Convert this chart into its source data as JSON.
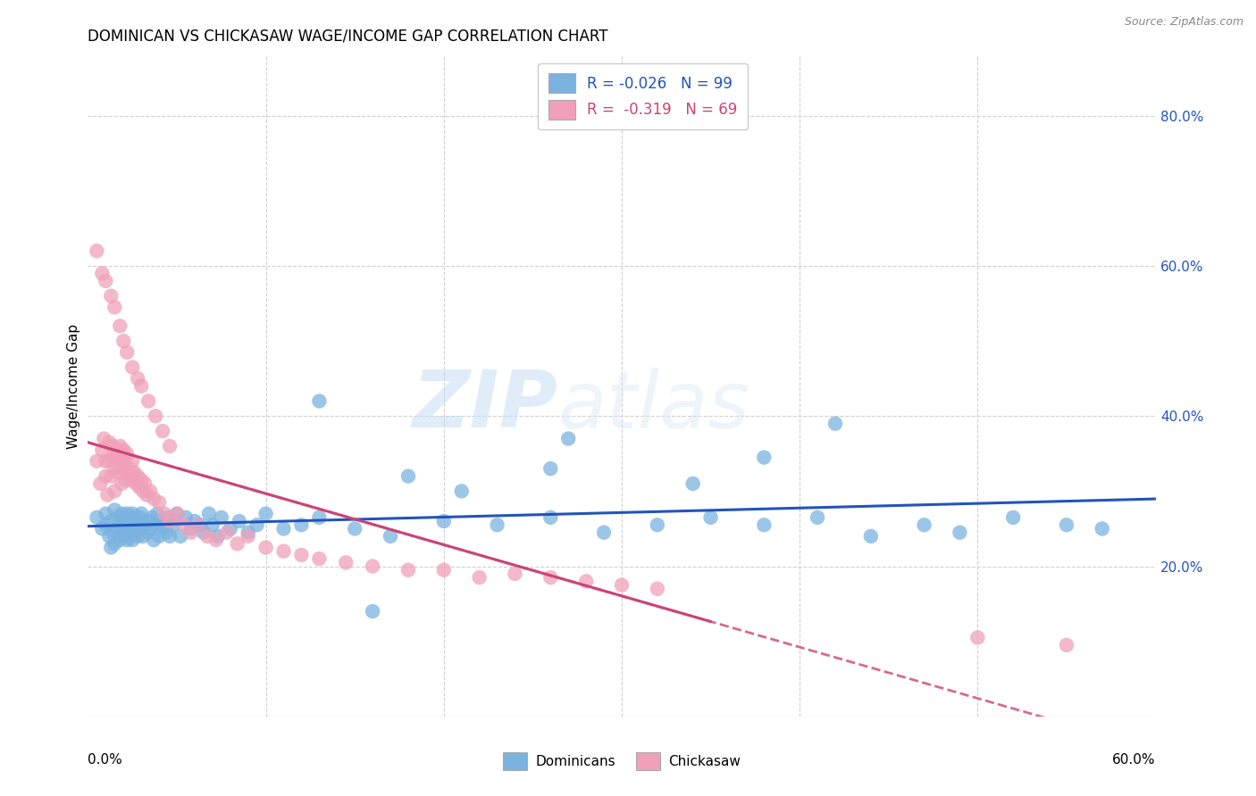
{
  "title": "DOMINICAN VS CHICKASAW WAGE/INCOME GAP CORRELATION CHART",
  "source": "Source: ZipAtlas.com",
  "ylabel": "Wage/Income Gap",
  "right_yticks": [
    "20.0%",
    "40.0%",
    "60.0%",
    "80.0%"
  ],
  "right_ytick_vals": [
    0.2,
    0.4,
    0.6,
    0.8
  ],
  "watermark_zip": "ZIP",
  "watermark_atlas": "atlas",
  "legend_line1": "R = -0.026   N = 99",
  "legend_line2": "R =  -0.319   N = 69",
  "blue_scatter_color": "#7ab3e0",
  "pink_scatter_color": "#f0a0b8",
  "blue_line_color": "#2255bb",
  "pink_line_color": "#cc4477",
  "grid_color": "#d0d0d0",
  "background_color": "#ffffff",
  "xmin": 0.0,
  "xmax": 0.6,
  "ymin": 0.0,
  "ymax": 0.88,
  "dominicans_x": [
    0.005,
    0.008,
    0.01,
    0.01,
    0.012,
    0.013,
    0.013,
    0.014,
    0.015,
    0.015,
    0.016,
    0.017,
    0.018,
    0.018,
    0.019,
    0.019,
    0.02,
    0.02,
    0.02,
    0.021,
    0.021,
    0.022,
    0.022,
    0.022,
    0.023,
    0.023,
    0.024,
    0.025,
    0.025,
    0.025,
    0.026,
    0.026,
    0.027,
    0.028,
    0.028,
    0.029,
    0.03,
    0.03,
    0.031,
    0.032,
    0.033,
    0.034,
    0.035,
    0.036,
    0.037,
    0.038,
    0.039,
    0.04,
    0.04,
    0.042,
    0.043,
    0.044,
    0.045,
    0.046,
    0.048,
    0.05,
    0.052,
    0.055,
    0.058,
    0.06,
    0.063,
    0.065,
    0.068,
    0.07,
    0.073,
    0.075,
    0.08,
    0.085,
    0.09,
    0.095,
    0.1,
    0.11,
    0.12,
    0.13,
    0.15,
    0.17,
    0.2,
    0.23,
    0.26,
    0.29,
    0.32,
    0.35,
    0.38,
    0.41,
    0.44,
    0.47,
    0.49,
    0.52,
    0.55,
    0.57,
    0.13,
    0.27,
    0.42,
    0.38,
    0.34,
    0.26,
    0.21,
    0.18,
    0.16
  ],
  "dominicans_y": [
    0.265,
    0.25,
    0.255,
    0.27,
    0.24,
    0.225,
    0.26,
    0.245,
    0.275,
    0.23,
    0.25,
    0.265,
    0.235,
    0.255,
    0.245,
    0.27,
    0.26,
    0.24,
    0.255,
    0.245,
    0.265,
    0.235,
    0.255,
    0.27,
    0.24,
    0.26,
    0.25,
    0.255,
    0.27,
    0.235,
    0.245,
    0.265,
    0.25,
    0.255,
    0.24,
    0.265,
    0.25,
    0.27,
    0.24,
    0.255,
    0.26,
    0.245,
    0.25,
    0.265,
    0.235,
    0.255,
    0.27,
    0.24,
    0.26,
    0.25,
    0.255,
    0.245,
    0.265,
    0.24,
    0.255,
    0.27,
    0.24,
    0.265,
    0.25,
    0.26,
    0.255,
    0.245,
    0.27,
    0.255,
    0.24,
    0.265,
    0.25,
    0.26,
    0.245,
    0.255,
    0.27,
    0.25,
    0.255,
    0.265,
    0.25,
    0.24,
    0.26,
    0.255,
    0.265,
    0.245,
    0.255,
    0.265,
    0.255,
    0.265,
    0.24,
    0.255,
    0.245,
    0.265,
    0.255,
    0.25,
    0.42,
    0.37,
    0.39,
    0.345,
    0.31,
    0.33,
    0.3,
    0.32,
    0.14
  ],
  "chickasaw_x": [
    0.005,
    0.007,
    0.008,
    0.009,
    0.01,
    0.01,
    0.011,
    0.012,
    0.012,
    0.013,
    0.014,
    0.014,
    0.015,
    0.015,
    0.016,
    0.016,
    0.017,
    0.018,
    0.018,
    0.019,
    0.019,
    0.02,
    0.02,
    0.021,
    0.021,
    0.022,
    0.022,
    0.023,
    0.024,
    0.025,
    0.025,
    0.026,
    0.027,
    0.028,
    0.029,
    0.03,
    0.031,
    0.032,
    0.033,
    0.035,
    0.037,
    0.04,
    0.043,
    0.046,
    0.05,
    0.054,
    0.058,
    0.062,
    0.067,
    0.072,
    0.078,
    0.084,
    0.09,
    0.1,
    0.11,
    0.12,
    0.13,
    0.145,
    0.16,
    0.18,
    0.2,
    0.22,
    0.24,
    0.26,
    0.28,
    0.3,
    0.32,
    0.5,
    0.55
  ],
  "chickasaw_y": [
    0.34,
    0.31,
    0.355,
    0.37,
    0.32,
    0.34,
    0.295,
    0.365,
    0.34,
    0.32,
    0.345,
    0.36,
    0.3,
    0.33,
    0.345,
    0.355,
    0.325,
    0.345,
    0.36,
    0.31,
    0.335,
    0.33,
    0.355,
    0.315,
    0.345,
    0.325,
    0.35,
    0.33,
    0.315,
    0.34,
    0.32,
    0.325,
    0.31,
    0.32,
    0.305,
    0.315,
    0.3,
    0.31,
    0.295,
    0.3,
    0.29,
    0.285,
    0.27,
    0.26,
    0.27,
    0.255,
    0.245,
    0.255,
    0.24,
    0.235,
    0.245,
    0.23,
    0.24,
    0.225,
    0.22,
    0.215,
    0.21,
    0.205,
    0.2,
    0.195,
    0.195,
    0.185,
    0.19,
    0.185,
    0.18,
    0.175,
    0.17,
    0.105,
    0.095
  ],
  "chickasaw_high_x": [
    0.005,
    0.008,
    0.01,
    0.013,
    0.015,
    0.018,
    0.02,
    0.022,
    0.025,
    0.028,
    0.03,
    0.034,
    0.038,
    0.042,
    0.046
  ],
  "chickasaw_high_y": [
    0.62,
    0.59,
    0.58,
    0.56,
    0.545,
    0.52,
    0.5,
    0.485,
    0.465,
    0.45,
    0.44,
    0.42,
    0.4,
    0.38,
    0.36
  ]
}
